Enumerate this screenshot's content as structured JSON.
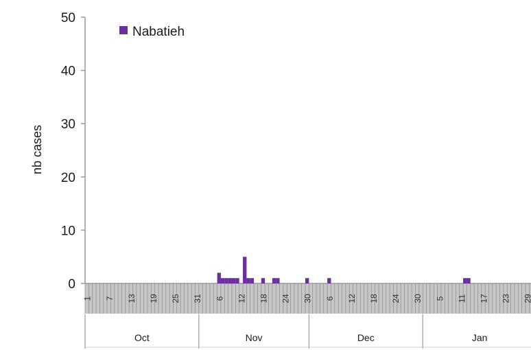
{
  "chart_data": {
    "type": "bar",
    "ylabel": "nb cases",
    "ylim": [
      0,
      50
    ],
    "y_ticks": [
      "0",
      "10",
      "20",
      "30",
      "40",
      "50"
    ],
    "legend": {
      "position": "top-left"
    },
    "grid": false,
    "colors": {
      "series": "#6b2fa0",
      "axis_band": "#c6c6c6"
    },
    "series": [
      {
        "name": "Nabatieh",
        "points": [
          {
            "x": "Nov 6",
            "y": 2
          },
          {
            "x": "Nov 7",
            "y": 1
          },
          {
            "x": "Nov 8",
            "y": 1
          },
          {
            "x": "Nov 9",
            "y": 1
          },
          {
            "x": "Nov 10",
            "y": 1
          },
          {
            "x": "Nov 11",
            "y": 1
          },
          {
            "x": "Nov 13",
            "y": 5
          },
          {
            "x": "Nov 14",
            "y": 1
          },
          {
            "x": "Nov 15",
            "y": 1
          },
          {
            "x": "Nov 18",
            "y": 1
          },
          {
            "x": "Nov 21",
            "y": 1
          },
          {
            "x": "Nov 22",
            "y": 1
          },
          {
            "x": "Nov 30",
            "y": 1
          },
          {
            "x": "Dec 6",
            "y": 1
          },
          {
            "x": "Jan 12",
            "y": 1
          },
          {
            "x": "Jan 13",
            "y": 1
          }
        ]
      }
    ],
    "x_ticks": [
      "1",
      "7",
      "13",
      "19",
      "25",
      "31",
      "6",
      "12",
      "18",
      "24",
      "30",
      "6",
      "12",
      "18",
      "24",
      "30",
      "5",
      "11",
      "17",
      "23",
      "29"
    ],
    "months": [
      "Oct",
      "Nov",
      "Dec",
      "Jan"
    ]
  }
}
